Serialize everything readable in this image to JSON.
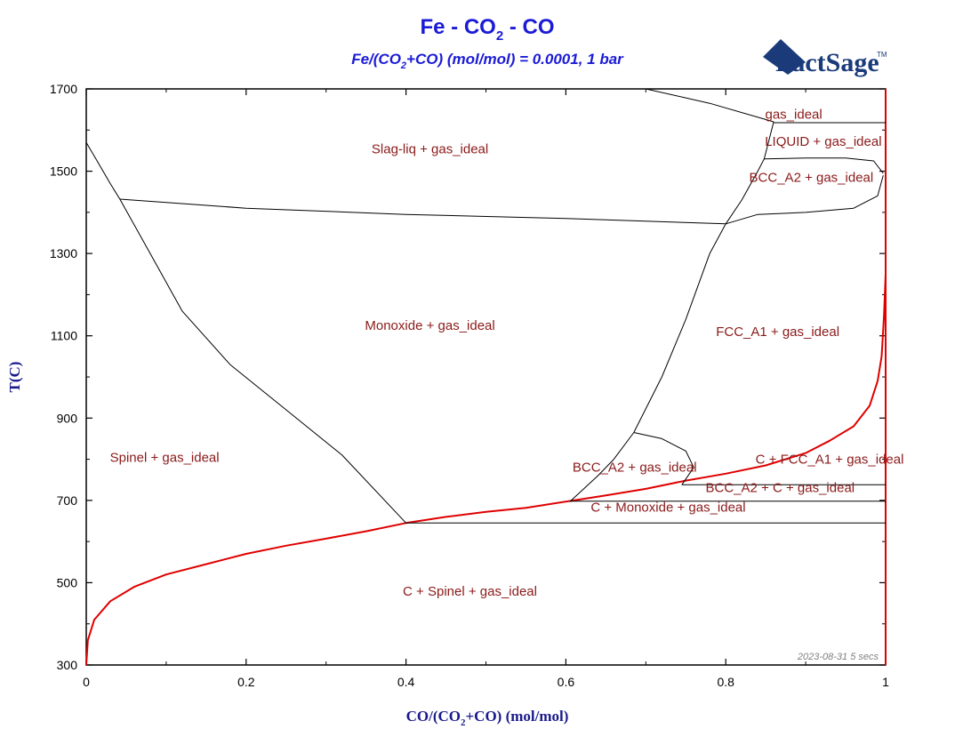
{
  "title": {
    "main": "Fe - CO",
    "sub2": "2",
    "tail": " - CO"
  },
  "subtitle": {
    "pre": "Fe/(CO",
    "sub2": "2",
    "post": "+CO) (mol/mol) = 0.0001, 1 bar"
  },
  "logo": {
    "text": "FactSage",
    "tm": "TM"
  },
  "stamp": "2023-08-31  5 secs",
  "chart_data": {
    "type": "line",
    "xlabel": {
      "pre": "CO/(CO",
      "sub2": "2",
      "post": "+CO) (mol/mol)"
    },
    "ylabel": "T(C)",
    "xlim": [
      0,
      1
    ],
    "ylim": [
      300,
      1700
    ],
    "x_ticks": [
      0,
      0.2,
      0.4,
      0.6,
      0.8,
      1
    ],
    "x_tick_labels": [
      "0",
      "0.2",
      "0.4",
      "0.6",
      "0.8",
      "1"
    ],
    "y_ticks": [
      300,
      500,
      700,
      900,
      1100,
      1300,
      1500,
      1700
    ],
    "y_tick_labels": [
      "300",
      "500",
      "700",
      "900",
      "1100",
      "1300",
      "1500",
      "1700"
    ],
    "colors": {
      "phase_boundary": "#000000",
      "carbon_boundary": "#e00000"
    },
    "series": [
      {
        "color": "red",
        "points": [
          [
            0,
            300
          ],
          [
            0.002,
            360
          ],
          [
            0.01,
            410
          ],
          [
            0.03,
            455
          ],
          [
            0.06,
            490
          ],
          [
            0.1,
            520
          ],
          [
            0.15,
            545
          ],
          [
            0.2,
            570
          ],
          [
            0.25,
            590
          ],
          [
            0.3,
            607
          ],
          [
            0.35,
            625
          ],
          [
            0.4,
            645
          ],
          [
            0.45,
            660
          ],
          [
            0.5,
            672
          ],
          [
            0.55,
            682
          ],
          [
            0.6,
            697
          ],
          [
            0.65,
            712
          ],
          [
            0.7,
            728
          ],
          [
            0.75,
            748
          ],
          [
            0.8,
            765
          ],
          [
            0.85,
            785
          ],
          [
            0.9,
            815
          ],
          [
            0.93,
            845
          ],
          [
            0.96,
            880
          ],
          [
            0.98,
            930
          ],
          [
            0.99,
            990
          ],
          [
            0.995,
            1050
          ],
          [
            0.998,
            1150
          ],
          [
            1,
            1250
          ]
        ]
      },
      {
        "color": "red",
        "points": [
          [
            1,
            300
          ],
          [
            1,
            1700
          ]
        ]
      },
      {
        "color": "black",
        "points": [
          [
            0,
            1570
          ],
          [
            0.015,
            1520
          ],
          [
            0.03,
            1470
          ],
          [
            0.042,
            1432
          ]
        ]
      },
      {
        "color": "black",
        "points": [
          [
            0.042,
            1432
          ],
          [
            0.2,
            1410
          ],
          [
            0.4,
            1395
          ],
          [
            0.6,
            1385
          ],
          [
            0.8,
            1372
          ],
          [
            0.84,
            1395
          ],
          [
            0.9,
            1400
          ],
          [
            0.96,
            1410
          ],
          [
            0.99,
            1440
          ],
          [
            0.997,
            1490
          ]
        ]
      },
      {
        "color": "black",
        "points": [
          [
            0.042,
            1432
          ],
          [
            0.08,
            1300
          ],
          [
            0.12,
            1160
          ],
          [
            0.18,
            1030
          ],
          [
            0.25,
            920
          ],
          [
            0.32,
            810
          ],
          [
            0.4,
            645
          ]
        ]
      },
      {
        "color": "black",
        "points": [
          [
            0.605,
            697
          ],
          [
            0.64,
            760
          ],
          [
            0.66,
            800
          ],
          [
            0.685,
            865
          ],
          [
            0.72,
            1000
          ],
          [
            0.75,
            1140
          ],
          [
            0.78,
            1300
          ],
          [
            0.8,
            1372
          ]
        ]
      },
      {
        "color": "black",
        "points": [
          [
            0.685,
            865
          ],
          [
            0.72,
            850
          ],
          [
            0.75,
            820
          ],
          [
            0.76,
            780
          ],
          [
            0.745,
            738
          ]
        ]
      },
      {
        "color": "black",
        "points": [
          [
            0.8,
            1372
          ],
          [
            0.82,
            1430
          ],
          [
            0.84,
            1500
          ],
          [
            0.848,
            1530
          ],
          [
            0.86,
            1620
          ]
        ]
      },
      {
        "color": "black",
        "points": [
          [
            0.848,
            1530
          ],
          [
            0.9,
            1532
          ],
          [
            0.95,
            1532
          ],
          [
            0.985,
            1525
          ],
          [
            0.997,
            1495
          ]
        ]
      },
      {
        "color": "black",
        "points": [
          [
            0.7,
            1700
          ],
          [
            0.78,
            1665
          ],
          [
            0.86,
            1620
          ]
        ]
      },
      {
        "color": "black",
        "points": [
          [
            0.86,
            1618
          ],
          [
            1,
            1618
          ]
        ]
      },
      {
        "color": "black",
        "points": [
          [
            0.4,
            645
          ],
          [
            1,
            645
          ]
        ]
      },
      {
        "color": "black",
        "points": [
          [
            0.605,
            698
          ],
          [
            1,
            698
          ]
        ]
      },
      {
        "color": "black",
        "points": [
          [
            0.745,
            738
          ],
          [
            1,
            738
          ]
        ]
      }
    ],
    "region_labels": [
      {
        "text": "gas_ideal",
        "x": 0.885,
        "y": 1628
      },
      {
        "text": "LIQUID + gas_ideal",
        "x": 0.922,
        "y": 1562
      },
      {
        "text": "BCC_A2 + gas_ideal",
        "x": 0.907,
        "y": 1474
      },
      {
        "text": "Slag-liq + gas_ideal",
        "x": 0.43,
        "y": 1543
      },
      {
        "text": "Monoxide + gas_ideal",
        "x": 0.43,
        "y": 1115
      },
      {
        "text": "FCC_A1 + gas_ideal",
        "x": 0.865,
        "y": 1099
      },
      {
        "text": "Spinel + gas_ideal",
        "x": 0.098,
        "y": 794
      },
      {
        "text": "BCC_A2 + gas_ideal",
        "x": 0.686,
        "y": 770
      },
      {
        "text": "C + FCC_A1 + gas_ideal",
        "x": 0.93,
        "y": 789
      },
      {
        "text": "BCC_A2 + C + gas_ideal",
        "x": 0.868,
        "y": 720
      },
      {
        "text": "C + Monoxide + gas_ideal",
        "x": 0.728,
        "y": 673
      },
      {
        "text": "C + Spinel + gas_ideal",
        "x": 0.48,
        "y": 468
      }
    ]
  }
}
